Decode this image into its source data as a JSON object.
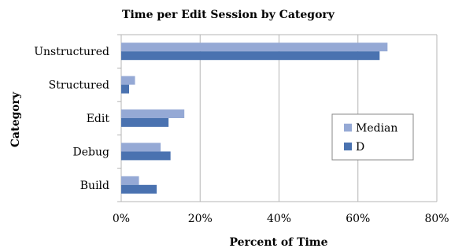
{
  "chart_data": {
    "type": "bar",
    "orientation": "horizontal",
    "title": "Time per Edit Session by Category",
    "xlabel": "Percent of Time",
    "ylabel": "Category",
    "categories": [
      "Unstructured",
      "Structured",
      "Edit",
      "Debug",
      "Build"
    ],
    "series": [
      {
        "name": "Median",
        "color": "#95A9D5",
        "values": [
          67.5,
          3.5,
          16,
          10,
          4.5
        ]
      },
      {
        "name": "D",
        "color": "#4A72B0",
        "values": [
          65.5,
          2,
          12,
          12.5,
          9
        ]
      }
    ],
    "xlim": [
      0,
      80
    ],
    "xticks": [
      0,
      20,
      40,
      60,
      80
    ],
    "xtick_labels": [
      "0%",
      "20%",
      "40%",
      "60%",
      "80%"
    ],
    "grid": {
      "vertical": true
    },
    "legend": {
      "placement": "right"
    }
  }
}
